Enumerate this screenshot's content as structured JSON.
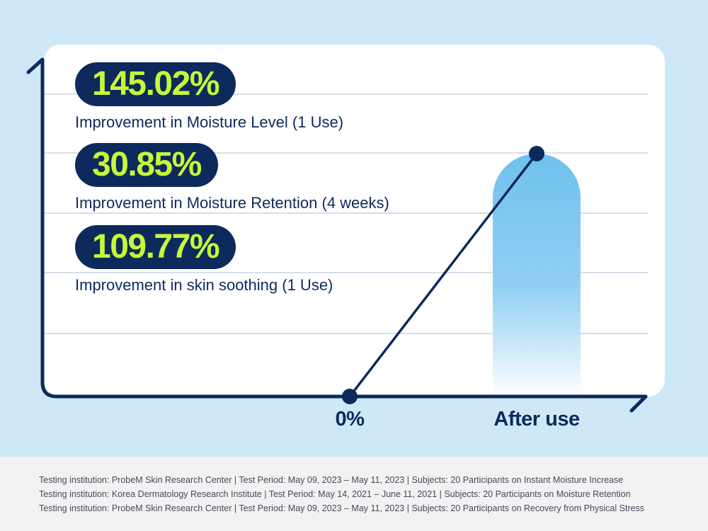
{
  "colors": {
    "background": "#cfe8f8",
    "card": "#ffffff",
    "navy": "#0c2a5b",
    "lime": "#c6f73a",
    "bar_top": "#6fc1ee",
    "gridline": "#c9d6e3",
    "footer": "#f2f2f3"
  },
  "chart_data": {
    "type": "bar",
    "title": "",
    "xlabel": "",
    "ylabel": "",
    "categories": [
      "0%",
      "After use"
    ],
    "values": [
      0,
      100
    ],
    "ylim": [
      0,
      100
    ],
    "grid": true,
    "line_overlay": true,
    "bar_fill": "gradient"
  },
  "stats": [
    {
      "value": "145.02%",
      "label": "Improvement in Moisture Level (1 Use)"
    },
    {
      "value": "30.85%",
      "label": "Improvement in Moisture Retention (4 weeks)"
    },
    {
      "value": "109.77%",
      "label": "Improvement in skin soothing (1 Use)"
    }
  ],
  "footnotes": [
    "Testing institution: ProbeM Skin Research Center | Test Period: May 09, 2023 – May 11, 2023 | Subjects: 20 Participants on Instant Moisture Increase",
    "Testing institution: Korea Dermatology Research Institute | Test Period: May 14, 2021 – June 11, 2021 | Subjects: 20 Participants on Moisture Retention",
    "Testing institution: ProbeM Skin Research Center | Test Period: May 09, 2023 – May 11, 2023 | Subjects: 20 Participants on Recovery from Physical Stress"
  ]
}
